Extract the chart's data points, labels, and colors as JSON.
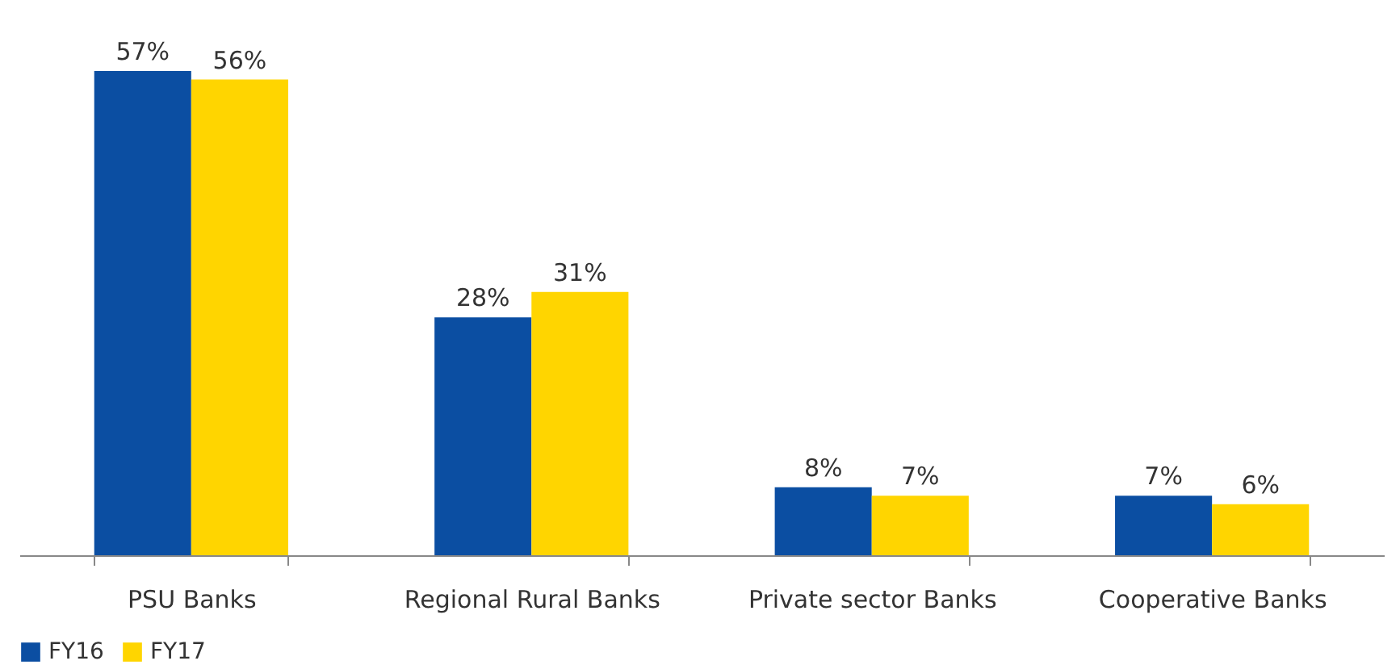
{
  "chart_data": {
    "type": "bar",
    "categories": [
      "PSU Banks",
      "Regional Rural Banks",
      "Private sector Banks",
      "Cooperative Banks"
    ],
    "series": [
      {
        "name": "FY16",
        "color": "#0b4ea2",
        "values": [
          57,
          28,
          8,
          7
        ],
        "value_labels": [
          "57%",
          "28%",
          "8%",
          "7%"
        ]
      },
      {
        "name": "FY17",
        "color": "#ffd500",
        "values": [
          56,
          31,
          7,
          6
        ],
        "value_labels": [
          "56%",
          "31%",
          "7%",
          "6%"
        ]
      }
    ],
    "legend": "bottom",
    "grid": false,
    "tick_labels": "x"
  }
}
